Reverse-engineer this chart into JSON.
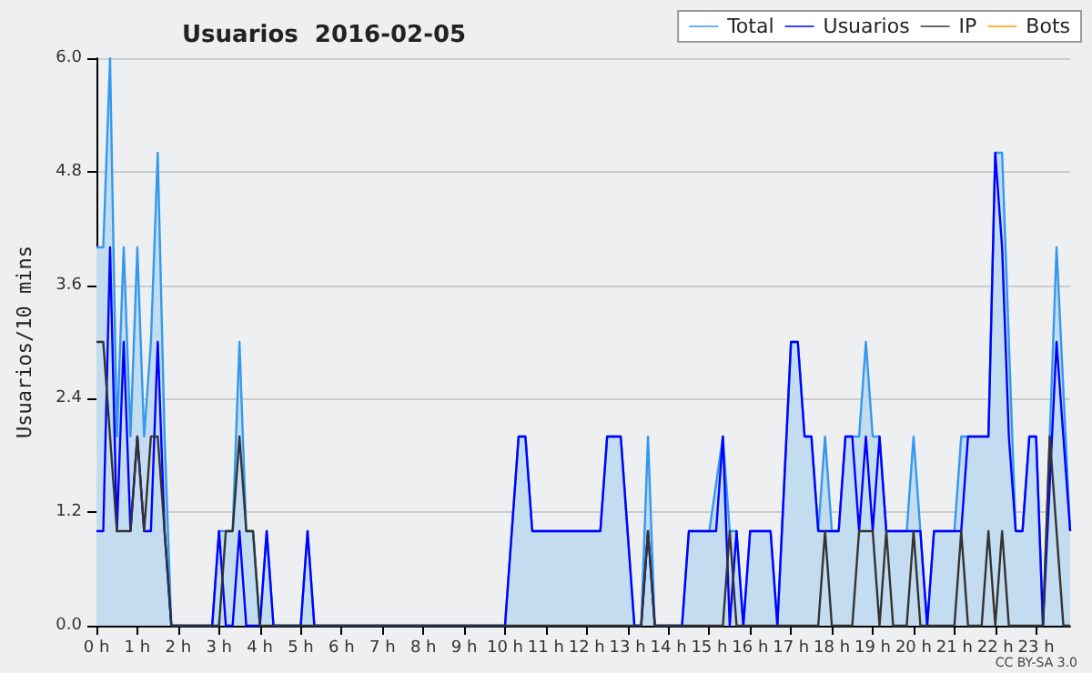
{
  "chart_data": {
    "type": "line",
    "title": "Usuarios  2016-02-05",
    "ylabel": "Usuarios/10 mins",
    "annotations": [
      "CC BY-SA 3.0"
    ],
    "xlim": [
      0,
      23.833
    ],
    "xticks": [
      {
        "value": 0,
        "label": "0 h"
      },
      {
        "value": 1,
        "label": "1 h"
      },
      {
        "value": 2,
        "label": "2 h"
      },
      {
        "value": 3,
        "label": "3 h"
      },
      {
        "value": 4,
        "label": "4 h"
      },
      {
        "value": 5,
        "label": "5 h"
      },
      {
        "value": 6,
        "label": "6 h"
      },
      {
        "value": 7,
        "label": "7 h"
      },
      {
        "value": 8,
        "label": "8 h"
      },
      {
        "value": 9,
        "label": "9 h"
      },
      {
        "value": 10,
        "label": "10 h"
      },
      {
        "value": 11,
        "label": "11 h"
      },
      {
        "value": 12,
        "label": "12 h"
      },
      {
        "value": 13,
        "label": "13 h"
      },
      {
        "value": 14,
        "label": "14 h"
      },
      {
        "value": 15,
        "label": "15 h"
      },
      {
        "value": 16,
        "label": "16 h"
      },
      {
        "value": 17,
        "label": "17 h"
      },
      {
        "value": 18,
        "label": "18 h"
      },
      {
        "value": 19,
        "label": "19 h"
      },
      {
        "value": 20,
        "label": "20 h"
      },
      {
        "value": 21,
        "label": "21 h"
      },
      {
        "value": 22,
        "label": "22 h"
      },
      {
        "value": 23,
        "label": "23 h"
      }
    ],
    "ylim": [
      0,
      6
    ],
    "yticks": [
      {
        "value": 0,
        "label": "0.0"
      },
      {
        "value": 1.2,
        "label": "1.2"
      },
      {
        "value": 2.4,
        "label": "2.4"
      },
      {
        "value": 3.6,
        "label": "3.6"
      },
      {
        "value": 4.8,
        "label": "4.8"
      },
      {
        "value": 6,
        "label": "6.0"
      }
    ],
    "grid": "y",
    "legend": "top right",
    "marker": "none",
    "line_style": "solid",
    "series": [
      {
        "name": "Total",
        "type": "area",
        "color": "#3399ee",
        "x": [
          0,
          0.167,
          0.333,
          0.5,
          0.667,
          0.833,
          1.0,
          1.167,
          1.333,
          1.5,
          1.667,
          1.833,
          2.833,
          3.0,
          3.167,
          3.333,
          3.5,
          3.667,
          3.833,
          4.0,
          4.167,
          4.333,
          5.0,
          5.167,
          5.333,
          10.0,
          10.333,
          10.5,
          10.667,
          12.333,
          12.5,
          12.833,
          13.167,
          13.333,
          13.5,
          13.667,
          14.333,
          14.5,
          15.0,
          15.333,
          15.5,
          15.667,
          15.833,
          16.0,
          16.5,
          16.667,
          17.0,
          17.167,
          17.333,
          17.5,
          17.667,
          17.833,
          18.0,
          18.167,
          18.333,
          18.5,
          18.667,
          18.833,
          19.0,
          19.167,
          19.333,
          19.833,
          20.0,
          20.167,
          20.333,
          20.5,
          21.0,
          21.167,
          21.833,
          22.0,
          22.167,
          22.333,
          22.5,
          22.667,
          22.833,
          23.0,
          23.167,
          23.5,
          23.833
        ],
        "values": [
          4,
          4,
          6,
          2,
          4,
          2,
          4,
          2,
          3,
          5,
          2,
          0,
          0,
          1,
          1,
          1,
          3,
          1,
          1,
          0,
          1,
          0,
          0,
          1,
          0,
          0,
          2,
          2,
          1,
          1,
          2,
          2,
          0,
          0,
          2,
          0,
          0,
          1,
          1,
          2,
          1,
          1,
          0,
          1,
          1,
          0,
          3,
          3,
          2,
          2,
          1,
          2,
          1,
          1,
          2,
          2,
          2,
          3,
          2,
          2,
          1,
          1,
          2,
          1,
          0,
          1,
          1,
          2,
          2,
          5,
          5,
          3,
          1,
          1,
          2,
          2,
          0,
          4,
          1
        ]
      },
      {
        "name": "Usuarios",
        "type": "line",
        "color": "#0000ff",
        "x": [
          0,
          0.167,
          0.333,
          0.5,
          0.667,
          0.833,
          1.0,
          1.167,
          1.333,
          1.5,
          1.667,
          1.833,
          2.833,
          3.0,
          3.167,
          3.333,
          3.5,
          3.667,
          4.0,
          4.167,
          4.333,
          5.0,
          5.167,
          5.333,
          10.0,
          10.333,
          10.5,
          10.667,
          12.333,
          12.5,
          12.833,
          13.167,
          13.333,
          13.5,
          13.667,
          14.333,
          14.5,
          15.0,
          15.167,
          15.333,
          15.5,
          15.667,
          15.833,
          16.0,
          16.5,
          16.667,
          17.0,
          17.167,
          17.333,
          17.5,
          17.667,
          18.167,
          18.333,
          18.5,
          18.667,
          18.833,
          19.0,
          19.167,
          19.333,
          20.167,
          20.333,
          20.5,
          21.167,
          21.333,
          21.833,
          22.0,
          22.167,
          22.333,
          22.5,
          22.667,
          22.833,
          23.0,
          23.167,
          23.5,
          23.833
        ],
        "values": [
          1,
          1,
          4,
          1,
          3,
          1,
          2,
          1,
          1,
          3,
          1,
          0,
          0,
          1,
          0,
          0,
          1,
          0,
          0,
          1,
          0,
          0,
          1,
          0,
          0,
          2,
          2,
          1,
          1,
          2,
          2,
          0,
          0,
          1,
          0,
          0,
          1,
          1,
          1,
          2,
          0,
          1,
          0,
          1,
          1,
          0,
          3,
          3,
          2,
          2,
          1,
          1,
          2,
          2,
          1,
          2,
          1,
          2,
          1,
          1,
          0,
          1,
          1,
          2,
          2,
          5,
          4,
          2,
          1,
          1,
          2,
          2,
          0,
          3,
          1
        ]
      },
      {
        "name": "IP",
        "type": "line",
        "color": "#333333",
        "x": [
          0,
          0.167,
          0.333,
          0.5,
          0.833,
          1.0,
          1.167,
          1.333,
          1.5,
          1.667,
          1.833,
          3.0,
          3.167,
          3.333,
          3.5,
          3.667,
          3.833,
          4.0,
          13.333,
          13.5,
          13.667,
          15.333,
          15.5,
          15.667,
          17.667,
          17.833,
          18.0,
          18.5,
          18.667,
          19.0,
          19.167,
          19.333,
          19.5,
          19.833,
          20.0,
          20.167,
          21.0,
          21.167,
          21.333,
          21.667,
          21.833,
          22.0,
          22.167,
          22.333,
          23.167,
          23.333,
          23.667,
          23.833
        ],
        "values": [
          3,
          3,
          2,
          1,
          1,
          2,
          1,
          2,
          2,
          1,
          0,
          0,
          1,
          1,
          2,
          1,
          1,
          0,
          0,
          1,
          0,
          0,
          1,
          0,
          0,
          1,
          0,
          0,
          1,
          1,
          0,
          1,
          0,
          0,
          1,
          0,
          0,
          1,
          0,
          0,
          1,
          0,
          1,
          0,
          0,
          2,
          0,
          0
        ]
      },
      {
        "name": "Bots",
        "color": "#ff9900"
      }
    ]
  }
}
